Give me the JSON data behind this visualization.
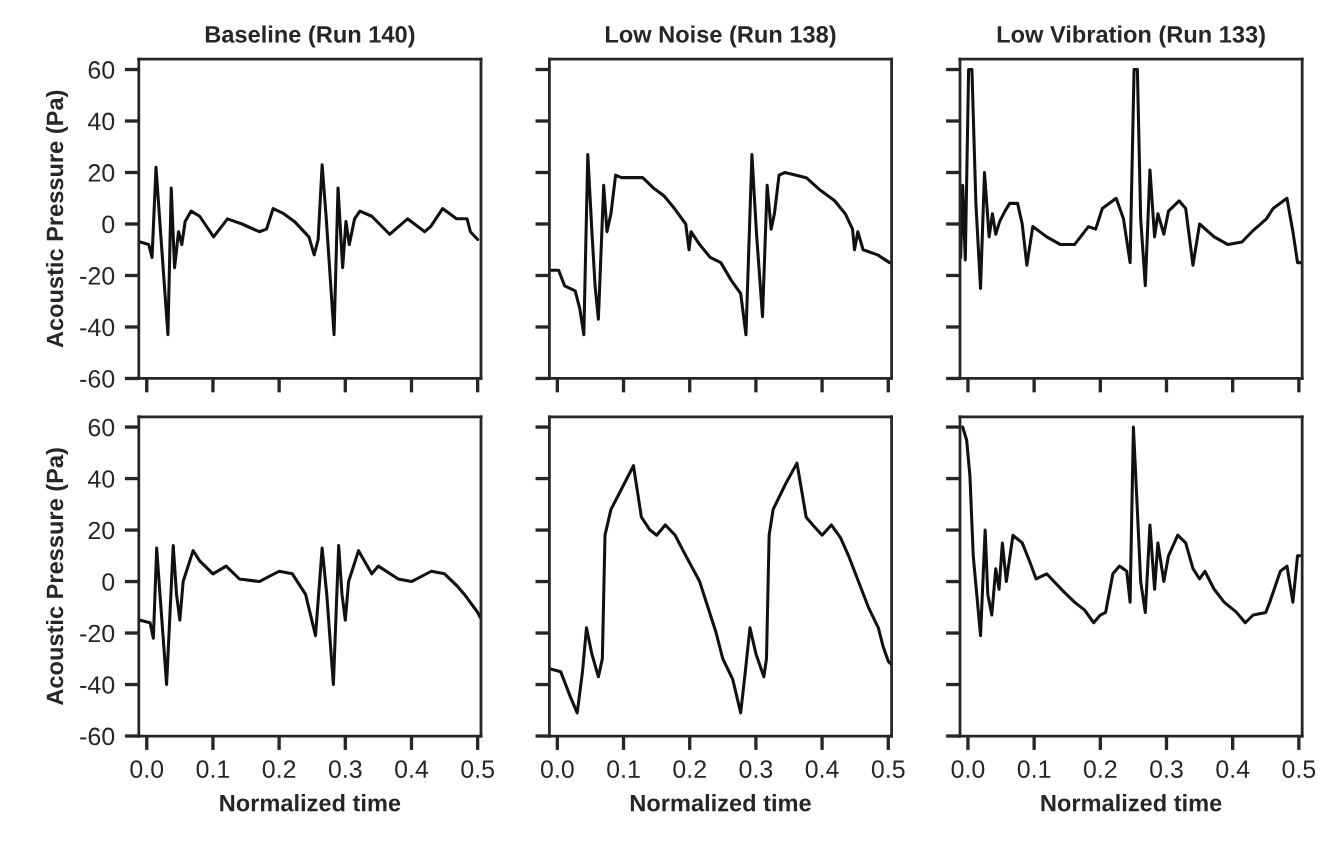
{
  "chart_data": [
    {
      "type": "line",
      "title": "Baseline (Run 140)",
      "ylabel": "Acoustic Pressure (Pa)",
      "tick_labels": "y",
      "grid": false,
      "line_style": "solid",
      "xlim": [
        -0.012,
        0.505
      ],
      "ylim": [
        -60,
        64
      ],
      "xticks": [
        {
          "value": 0,
          "label": null
        },
        {
          "value": 0.1,
          "label": null
        },
        {
          "value": 0.2,
          "label": null
        },
        {
          "value": 0.3,
          "label": null
        },
        {
          "value": 0.4,
          "label": null
        },
        {
          "value": 0.5,
          "label": null
        }
      ],
      "yticks": [
        -60,
        -40,
        -20,
        0,
        20,
        40,
        60
      ],
      "series": [
        {
          "color": "#111111",
          "x": [
            -0.01,
            0.003,
            0.008,
            0.014,
            0.02,
            0.032,
            0.037,
            0.042,
            0.048,
            0.053,
            0.058,
            0.067,
            0.08,
            0.101,
            0.122,
            0.144,
            0.17,
            0.181,
            0.191,
            0.207,
            0.223,
            0.245,
            0.253,
            0.259,
            0.265,
            0.271,
            0.283,
            0.289,
            0.296,
            0.301,
            0.306,
            0.314,
            0.322,
            0.34,
            0.367,
            0.394,
            0.42,
            0.429,
            0.447,
            0.468,
            0.484,
            0.489,
            0.5
          ],
          "values": [
            -7,
            -8,
            -13,
            22,
            0,
            -43,
            14,
            -17,
            -3,
            -8,
            1,
            5,
            3,
            -5,
            2,
            0,
            -3,
            -2,
            6,
            4,
            1,
            -5,
            -12,
            -6,
            23,
            3,
            -43,
            14,
            -17,
            1,
            -8,
            2,
            5,
            3,
            -4,
            2,
            -3,
            -1,
            6,
            2,
            2,
            -3,
            -6
          ]
        }
      ]
    },
    {
      "type": "line",
      "title": "Low Noise (Run 138)",
      "tick_labels": false,
      "grid": false,
      "line_style": "solid",
      "xlim": [
        -0.012,
        0.505
      ],
      "ylim": [
        -60,
        64
      ],
      "xticks": [
        {
          "value": 0,
          "label": null
        },
        {
          "value": 0.1,
          "label": null
        },
        {
          "value": 0.2,
          "label": null
        },
        {
          "value": 0.3,
          "label": null
        },
        {
          "value": 0.4,
          "label": null
        },
        {
          "value": 0.5,
          "label": null
        }
      ],
      "yticks": [
        {
          "value": -60,
          "label": null
        },
        {
          "value": -40,
          "label": null
        },
        {
          "value": -20,
          "label": null
        },
        {
          "value": 0,
          "label": null
        },
        {
          "value": 20,
          "label": null
        },
        {
          "value": 40,
          "label": null
        },
        {
          "value": 60,
          "label": null
        }
      ],
      "series": [
        {
          "color": "#111111",
          "x": [
            -0.011,
            0.002,
            0.011,
            0.027,
            0.034,
            0.04,
            0.046,
            0.052,
            0.057,
            0.062,
            0.07,
            0.075,
            0.081,
            0.088,
            0.097,
            0.113,
            0.129,
            0.145,
            0.161,
            0.177,
            0.194,
            0.199,
            0.202,
            0.215,
            0.231,
            0.247,
            0.263,
            0.277,
            0.285,
            0.294,
            0.301,
            0.31,
            0.317,
            0.323,
            0.328,
            0.335,
            0.344,
            0.376,
            0.398,
            0.419,
            0.435,
            0.446,
            0.449,
            0.454,
            0.462,
            0.484,
            0.502
          ],
          "values": [
            -18,
            -18,
            -24,
            -26,
            -33,
            -43,
            27,
            -2,
            -24,
            -37,
            15,
            -3,
            4,
            19,
            18,
            18,
            18,
            14,
            11,
            6,
            0,
            -10,
            -3,
            -8,
            -13,
            -15,
            -22,
            -27,
            -43,
            27,
            -4,
            -36,
            15,
            -2,
            4,
            19,
            20,
            18,
            13,
            9,
            4,
            -2,
            -10,
            -3,
            -10,
            -12,
            -15
          ]
        }
      ]
    },
    {
      "type": "line",
      "title": "Low Vibration (Run 133)",
      "tick_labels": false,
      "grid": false,
      "line_style": "solid",
      "xlim": [
        -0.012,
        0.505
      ],
      "ylim": [
        -60,
        64
      ],
      "xticks": [
        {
          "value": 0,
          "label": null
        },
        {
          "value": 0.1,
          "label": null
        },
        {
          "value": 0.2,
          "label": null
        },
        {
          "value": 0.3,
          "label": null
        },
        {
          "value": 0.4,
          "label": null
        },
        {
          "value": 0.5,
          "label": null
        }
      ],
      "yticks": [
        {
          "value": -60,
          "label": null
        },
        {
          "value": -40,
          "label": null
        },
        {
          "value": -20,
          "label": null
        },
        {
          "value": 0,
          "label": null
        },
        {
          "value": 20,
          "label": null
        },
        {
          "value": 40,
          "label": null
        },
        {
          "value": 60,
          "label": null
        }
      ],
      "series": [
        {
          "color": "#111111",
          "x": [
            -0.011,
            -0.008,
            -0.004,
            0.001,
            0.006,
            0.012,
            0.019,
            0.025,
            0.032,
            0.037,
            0.042,
            0.048,
            0.056,
            0.063,
            0.075,
            0.082,
            0.089,
            0.098,
            0.119,
            0.14,
            0.161,
            0.182,
            0.193,
            0.203,
            0.224,
            0.235,
            0.245,
            0.251,
            0.256,
            0.261,
            0.268,
            0.275,
            0.282,
            0.287,
            0.296,
            0.303,
            0.319,
            0.329,
            0.34,
            0.35,
            0.372,
            0.393,
            0.414,
            0.429,
            0.451,
            0.461,
            0.482,
            0.491,
            0.498,
            0.503
          ],
          "values": [
            -13,
            15,
            -14,
            60,
            60,
            8,
            -25,
            20,
            -5,
            4,
            -4,
            1,
            5,
            8,
            8,
            0,
            -16,
            -1,
            -5,
            -8,
            -8,
            -1,
            -2,
            6,
            10,
            2,
            -15,
            60,
            60,
            2,
            -24,
            21,
            -5,
            4,
            -4,
            5,
            9,
            6,
            -16,
            0,
            -5,
            -8,
            -7,
            -3,
            2,
            6,
            10,
            -3,
            -15,
            -15
          ]
        }
      ]
    },
    {
      "type": "line",
      "xlabel": "Normalized time",
      "ylabel": "Acoustic Pressure (Pa)",
      "grid": false,
      "line_style": "solid",
      "xlim": [
        -0.012,
        0.505
      ],
      "ylim": [
        -60,
        64
      ],
      "xticks": [
        {
          "value": 0,
          "label": "0.0"
        },
        0.1,
        0.2,
        0.3,
        0.4,
        0.5
      ],
      "yticks": [
        -60,
        -40,
        -20,
        0,
        20,
        40,
        60
      ],
      "series": [
        {
          "color": "#111111",
          "x": [
            -0.01,
            0.005,
            0.01,
            0.015,
            0.02,
            0.03,
            0.04,
            0.045,
            0.05,
            0.055,
            0.07,
            0.08,
            0.1,
            0.12,
            0.14,
            0.17,
            0.2,
            0.22,
            0.24,
            0.255,
            0.265,
            0.272,
            0.282,
            0.29,
            0.295,
            0.3,
            0.305,
            0.32,
            0.34,
            0.35,
            0.38,
            0.4,
            0.43,
            0.45,
            0.47,
            0.48,
            0.5,
            0.504
          ],
          "values": [
            -15,
            -16,
            -22,
            13,
            -5,
            -40,
            14,
            -5,
            -15,
            0,
            12,
            8,
            3,
            6,
            1,
            0,
            4,
            3,
            -5,
            -21,
            13,
            -5,
            -40,
            14,
            -5,
            -15,
            0,
            12,
            3,
            6,
            1,
            0,
            4,
            3,
            -2,
            -5,
            -12,
            -14
          ]
        }
      ]
    },
    {
      "type": "line",
      "xlabel": "Normalized time",
      "tick_labels": "x",
      "grid": false,
      "line_style": "solid",
      "xlim": [
        -0.012,
        0.505
      ],
      "ylim": [
        -60,
        64
      ],
      "xticks": [
        {
          "value": 0,
          "label": "0.0"
        },
        0.1,
        0.2,
        0.3,
        0.4,
        0.5
      ],
      "yticks": [
        {
          "value": -60,
          "label": null
        },
        {
          "value": -40,
          "label": null
        },
        {
          "value": -20,
          "label": null
        },
        {
          "value": 0,
          "label": null
        },
        {
          "value": 20,
          "label": null
        },
        {
          "value": 40,
          "label": null
        },
        {
          "value": 60,
          "label": null
        }
      ],
      "series": [
        {
          "color": "#111111",
          "x": [
            -0.01,
            0.005,
            0.02,
            0.03,
            0.038,
            0.044,
            0.052,
            0.062,
            0.068,
            0.072,
            0.081,
            0.095,
            0.115,
            0.127,
            0.14,
            0.15,
            0.163,
            0.178,
            0.19,
            0.215,
            0.24,
            0.25,
            0.265,
            0.277,
            0.284,
            0.291,
            0.3,
            0.312,
            0.316,
            0.32,
            0.326,
            0.345,
            0.362,
            0.376,
            0.386,
            0.4,
            0.414,
            0.428,
            0.44,
            0.455,
            0.47,
            0.485,
            0.492,
            0.5,
            0.504
          ],
          "values": [
            -34,
            -35,
            -45,
            -51,
            -35,
            -18,
            -28,
            -37,
            -30,
            18,
            28,
            35,
            45,
            25,
            20,
            18,
            22,
            18,
            12,
            0,
            -20,
            -30,
            -38,
            -51,
            -35,
            -18,
            -28,
            -37,
            -30,
            18,
            28,
            38,
            46,
            25,
            22,
            18,
            22,
            17,
            10,
            0,
            -10,
            -18,
            -25,
            -31,
            -32
          ]
        }
      ]
    },
    {
      "type": "line",
      "xlabel": "Normalized time",
      "tick_labels": "x",
      "grid": false,
      "line_style": "solid",
      "xlim": [
        -0.012,
        0.505
      ],
      "ylim": [
        -60,
        64
      ],
      "xticks": [
        {
          "value": 0,
          "label": "0.0"
        },
        0.1,
        0.2,
        0.3,
        0.4,
        0.5
      ],
      "yticks": [
        {
          "value": -60,
          "label": null
        },
        {
          "value": -40,
          "label": null
        },
        {
          "value": -20,
          "label": null
        },
        {
          "value": 0,
          "label": null
        },
        {
          "value": 20,
          "label": null
        },
        {
          "value": 40,
          "label": null
        },
        {
          "value": 60,
          "label": null
        }
      ],
      "series": [
        {
          "color": "#111111",
          "x": [
            -0.008,
            -0.002,
            0.003,
            0.008,
            0.019,
            0.026,
            0.03,
            0.036,
            0.042,
            0.047,
            0.052,
            0.058,
            0.068,
            0.082,
            0.093,
            0.103,
            0.119,
            0.13,
            0.145,
            0.161,
            0.176,
            0.19,
            0.2,
            0.208,
            0.219,
            0.229,
            0.24,
            0.245,
            0.25,
            0.255,
            0.261,
            0.268,
            0.275,
            0.282,
            0.287,
            0.296,
            0.303,
            0.317,
            0.329,
            0.34,
            0.35,
            0.358,
            0.372,
            0.387,
            0.406,
            0.419,
            0.431,
            0.45,
            0.456,
            0.472,
            0.482,
            0.491,
            0.498,
            0.503
          ],
          "values": [
            60,
            55,
            41,
            10,
            -21,
            20,
            -5,
            -13,
            5,
            -3,
            15,
            0,
            18,
            15,
            8,
            1,
            3,
            0,
            -4,
            -8,
            -11,
            -16,
            -13,
            -12,
            3,
            6,
            4,
            -8,
            60,
            33,
            0,
            -12,
            22,
            -3,
            15,
            0,
            10,
            18,
            15,
            5,
            1,
            4,
            -3,
            -8,
            -12,
            -16,
            -13,
            -12,
            -8,
            4,
            6,
            -8,
            10,
            10
          ]
        }
      ]
    }
  ]
}
